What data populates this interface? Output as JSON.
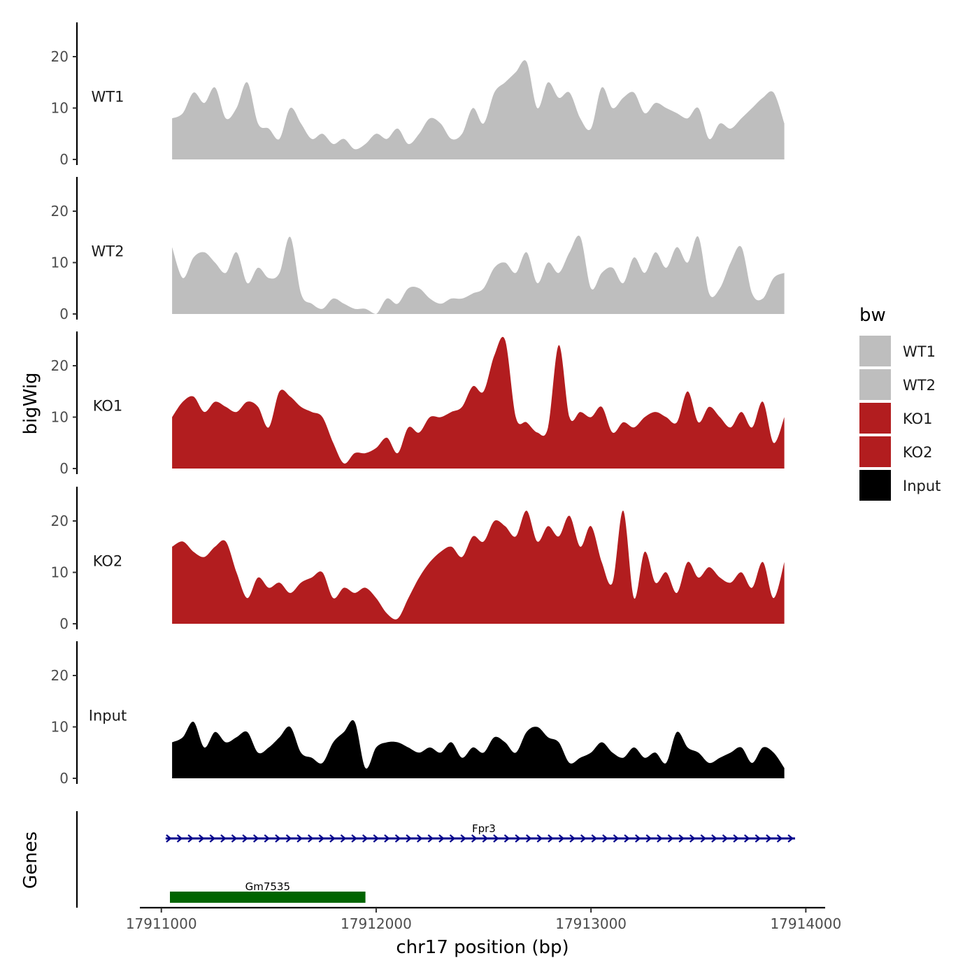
{
  "chart_data": {
    "type": "area",
    "ylabel": "bigWig",
    "xlabel": "chr17 position (bp)",
    "xlim": [
      17910900,
      17914090
    ],
    "ylim": [
      0,
      26.5
    ],
    "y_ticks": [
      0,
      10,
      20
    ],
    "x_ticks": [
      17911000,
      17912000,
      17913000,
      17914000
    ],
    "x_tick_labels": [
      "17911000",
      "17912000",
      "17913000",
      "17914000"
    ],
    "legend": {
      "title": "bw",
      "placement": "right",
      "entries": [
        {
          "label": "WT1",
          "color": "#bebebe"
        },
        {
          "label": "WT2",
          "color": "#bebebe"
        },
        {
          "label": "KO1",
          "color": "#b21d1f"
        },
        {
          "label": "KO2",
          "color": "#b21d1f"
        },
        {
          "label": "Input",
          "color": "#000000"
        }
      ]
    },
    "x": [
      17911050,
      17911100,
      17911150,
      17911200,
      17911250,
      17911300,
      17911350,
      17911400,
      17911450,
      17911500,
      17911550,
      17911600,
      17911650,
      17911700,
      17911750,
      17911800,
      17911850,
      17911900,
      17911950,
      17912000,
      17912050,
      17912100,
      17912150,
      17912200,
      17912250,
      17912300,
      17912350,
      17912400,
      17912450,
      17912500,
      17912550,
      17912600,
      17912650,
      17912700,
      17912750,
      17912800,
      17912850,
      17912900,
      17912950,
      17913000,
      17913050,
      17913100,
      17913150,
      17913200,
      17913250,
      17913300,
      17913350,
      17913400,
      17913450,
      17913500,
      17913550,
      17913600,
      17913650,
      17913700,
      17913750,
      17913800,
      17913850,
      17913900
    ],
    "series": [
      {
        "name": "WT1",
        "color": "#bebebe",
        "values": [
          8,
          9,
          13,
          11,
          14,
          8,
          10,
          15,
          7,
          6,
          4,
          10,
          7,
          4,
          5,
          3,
          4,
          2,
          3,
          5,
          4,
          6,
          3,
          5,
          8,
          7,
          4,
          5,
          10,
          7,
          13,
          15,
          17,
          19,
          10,
          15,
          12,
          13,
          8,
          6,
          14,
          10,
          12,
          13,
          9,
          11,
          10,
          9,
          8,
          10,
          4,
          7,
          6,
          8,
          10,
          12,
          13,
          7
        ]
      },
      {
        "name": "WT2",
        "color": "#bebebe",
        "values": [
          13,
          7,
          11,
          12,
          10,
          8,
          12,
          6,
          9,
          7,
          8,
          15,
          4,
          2,
          1,
          3,
          2,
          1,
          1,
          0,
          3,
          2,
          5,
          5,
          3,
          2,
          3,
          3,
          4,
          5,
          9,
          10,
          8,
          12,
          6,
          10,
          8,
          12,
          15,
          5,
          8,
          9,
          6,
          11,
          8,
          12,
          9,
          13,
          10,
          15,
          4,
          5,
          10,
          13,
          4,
          3,
          7,
          8
        ]
      },
      {
        "name": "KO1",
        "color": "#b21d1f",
        "values": [
          10,
          13,
          14,
          11,
          13,
          12,
          11,
          13,
          12,
          8,
          15,
          14,
          12,
          11,
          10,
          5,
          1,
          3,
          3,
          4,
          6,
          3,
          8,
          7,
          10,
          10,
          11,
          12,
          16,
          15,
          22,
          25,
          10,
          9,
          7,
          8,
          24,
          10,
          11,
          10,
          12,
          7,
          9,
          8,
          10,
          11,
          10,
          9,
          15,
          9,
          12,
          10,
          8,
          11,
          8,
          13,
          5,
          10
        ]
      },
      {
        "name": "KO2",
        "color": "#b21d1f",
        "values": [
          15,
          16,
          14,
          13,
          15,
          16,
          10,
          5,
          9,
          7,
          8,
          6,
          8,
          9,
          10,
          5,
          7,
          6,
          7,
          5,
          2,
          1,
          5,
          9,
          12,
          14,
          15,
          13,
          17,
          16,
          20,
          19,
          17,
          22,
          16,
          19,
          17,
          21,
          15,
          19,
          12,
          8,
          22,
          5,
          14,
          8,
          10,
          6,
          12,
          9,
          11,
          9,
          8,
          10,
          7,
          12,
          5,
          12
        ]
      },
      {
        "name": "Input",
        "color": "#000000",
        "values": [
          7,
          8,
          11,
          6,
          9,
          7,
          8,
          9,
          5,
          6,
          8,
          10,
          5,
          4,
          3,
          7,
          9,
          11,
          2,
          6,
          7,
          7,
          6,
          5,
          6,
          5,
          7,
          4,
          6,
          5,
          8,
          7,
          5,
          9,
          10,
          8,
          7,
          3,
          4,
          5,
          7,
          5,
          4,
          6,
          4,
          5,
          3,
          9,
          6,
          5,
          3,
          4,
          5,
          6,
          3,
          6,
          5,
          2
        ]
      }
    ],
    "genes": [
      {
        "name": "Fpr3",
        "start": 17911020,
        "end": 17913950,
        "strand": "+",
        "color": "#00008b"
      },
      {
        "name": "Gm7535",
        "start": 17911040,
        "end": 17911950,
        "color": "#006400"
      }
    ],
    "gene_panel_label": "Genes"
  }
}
